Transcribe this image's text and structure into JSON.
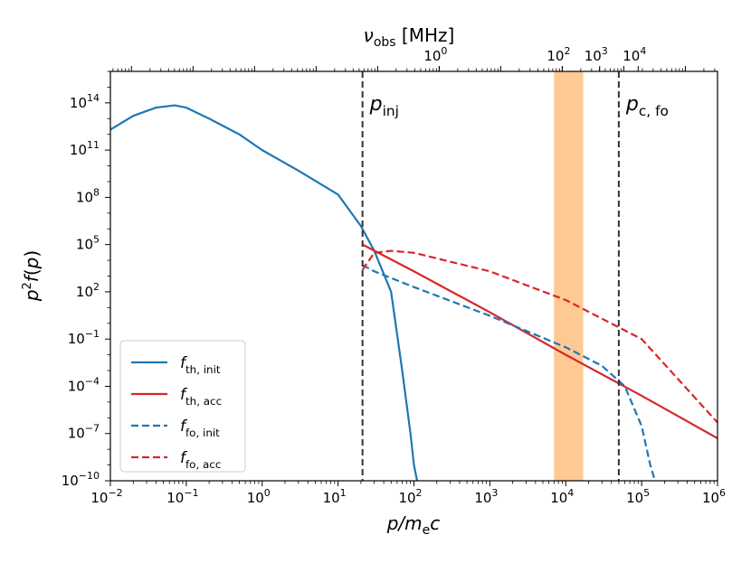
{
  "chart_data": {
    "type": "line",
    "xlabel": "p/m_e c",
    "ylabel": "p^2 f(p)",
    "top_xlabel": "ν_obs [MHz]",
    "x_scale": "log",
    "y_scale": "log",
    "xlim": [
      0.01,
      1000000
    ],
    "ylim": [
      1e-10,
      1e+16
    ],
    "x_ticks": [
      {
        "value": 0.01,
        "base": "10",
        "exp": "−2"
      },
      {
        "value": 0.1,
        "base": "10",
        "exp": "−1"
      },
      {
        "value": 1,
        "base": "10",
        "exp": "0"
      },
      {
        "value": 10,
        "base": "10",
        "exp": "1"
      },
      {
        "value": 100,
        "base": "10",
        "exp": "2"
      },
      {
        "value": 1000,
        "base": "10",
        "exp": "3"
      },
      {
        "value": 10000,
        "base": "10",
        "exp": "4"
      },
      {
        "value": 100000,
        "base": "10",
        "exp": "5"
      },
      {
        "value": 1000000,
        "base": "10",
        "exp": "6"
      }
    ],
    "y_ticks": [
      {
        "value": 1e-10,
        "base": "10",
        "exp": "−10"
      },
      {
        "value": 1e-07,
        "base": "10",
        "exp": "−7"
      },
      {
        "value": 0.0001,
        "base": "10",
        "exp": "−4"
      },
      {
        "value": 0.1,
        "base": "10",
        "exp": "−1"
      },
      {
        "value": 100,
        "base": "10",
        "exp": "2"
      },
      {
        "value": 100000,
        "base": "10",
        "exp": "5"
      },
      {
        "value": 100000000.0,
        "base": "10",
        "exp": "8"
      },
      {
        "value": 100000000000.0,
        "base": "10",
        "exp": "11"
      },
      {
        "value": 100000000000000.0,
        "base": "10",
        "exp": "14"
      }
    ],
    "top_ticks": [
      {
        "p": 215,
        "base": "10",
        "exp": "0"
      },
      {
        "p": 9000,
        "base": "10",
        "exp": "2"
      },
      {
        "p": 28000,
        "base": "10",
        "exp": "3"
      },
      {
        "p": 90000,
        "base": "10",
        "exp": "4"
      }
    ],
    "vlines": [
      {
        "x": 21,
        "label": "p",
        "sub": "inj"
      },
      {
        "x": 50000,
        "label": "p",
        "sub": "c, fo"
      }
    ],
    "band": {
      "x0": 7000,
      "x1": 17000,
      "color": "#ffbf80"
    },
    "series": [
      {
        "name": "f",
        "sub": "th, init",
        "color": "#1f77b4",
        "dash": false,
        "x": [
          0.01,
          0.02,
          0.04,
          0.07,
          0.1,
          0.2,
          0.5,
          1,
          3,
          10,
          20,
          30,
          50,
          70,
          90,
          100,
          110
        ],
        "y": [
          2000000000000.0,
          15000000000000.0,
          50000000000000.0,
          70000000000000.0,
          50000000000000.0,
          10000000000000.0,
          1000000000000.0,
          100000000000.0,
          5000000000.0,
          150000000.0,
          1500000.0,
          40000.0,
          100,
          0.001,
          1e-07,
          1e-09,
          1e-10
        ]
      },
      {
        "name": "f",
        "sub": "th, acc",
        "color": "#d62728",
        "dash": false,
        "x": [
          21,
          100,
          1000,
          10000,
          100000,
          1000000
        ],
        "y": [
          100000.0,
          2000,
          5,
          0.01,
          2.5e-05,
          5e-08
        ]
      },
      {
        "name": "f",
        "sub": "fo, init",
        "color": "#1f77b4",
        "dash": true,
        "x": [
          21,
          30,
          100,
          1000,
          10000,
          30000,
          60000,
          100000,
          130000,
          150000
        ],
        "y": [
          5000,
          2000,
          200,
          3,
          0.03,
          0.002,
          0.0001,
          3e-07,
          1e-09,
          1e-10
        ]
      },
      {
        "name": "f",
        "sub": "fo, acc",
        "color": "#d62728",
        "dash": true,
        "x": [
          21,
          30,
          50,
          100,
          1000,
          10000,
          100000,
          1000000
        ],
        "y": [
          2500,
          30000.0,
          40000.0,
          30000.0,
          2000,
          30,
          0.1,
          5e-07
        ]
      }
    ],
    "legend_position": "lower left",
    "grid": false
  }
}
